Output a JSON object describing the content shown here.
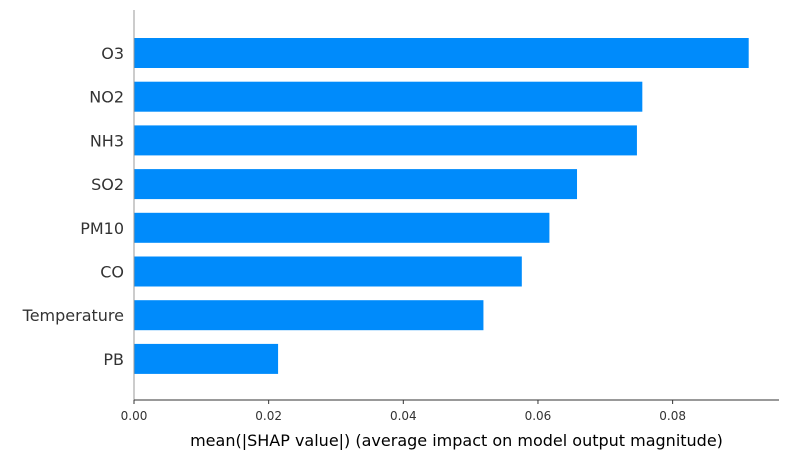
{
  "chart_data": {
    "type": "bar",
    "orientation": "horizontal",
    "categories": [
      "O3",
      "NO2",
      "NH3",
      "SO2",
      "PM10",
      "CO",
      "Temperature",
      "PB"
    ],
    "values": [
      0.0913,
      0.0755,
      0.0747,
      0.0658,
      0.0617,
      0.0576,
      0.0519,
      0.0214
    ],
    "xlabel": "mean(|SHAP value|) (average impact on model output magnitude)",
    "ylabel": "",
    "xlim": [
      0,
      0.0958
    ],
    "xticks": [
      0.0,
      0.02,
      0.04,
      0.06,
      0.08
    ],
    "xtick_labels": [
      "0.00",
      "0.02",
      "0.04",
      "0.06",
      "0.08"
    ],
    "bar_color": "#008bfb",
    "grid": false
  }
}
